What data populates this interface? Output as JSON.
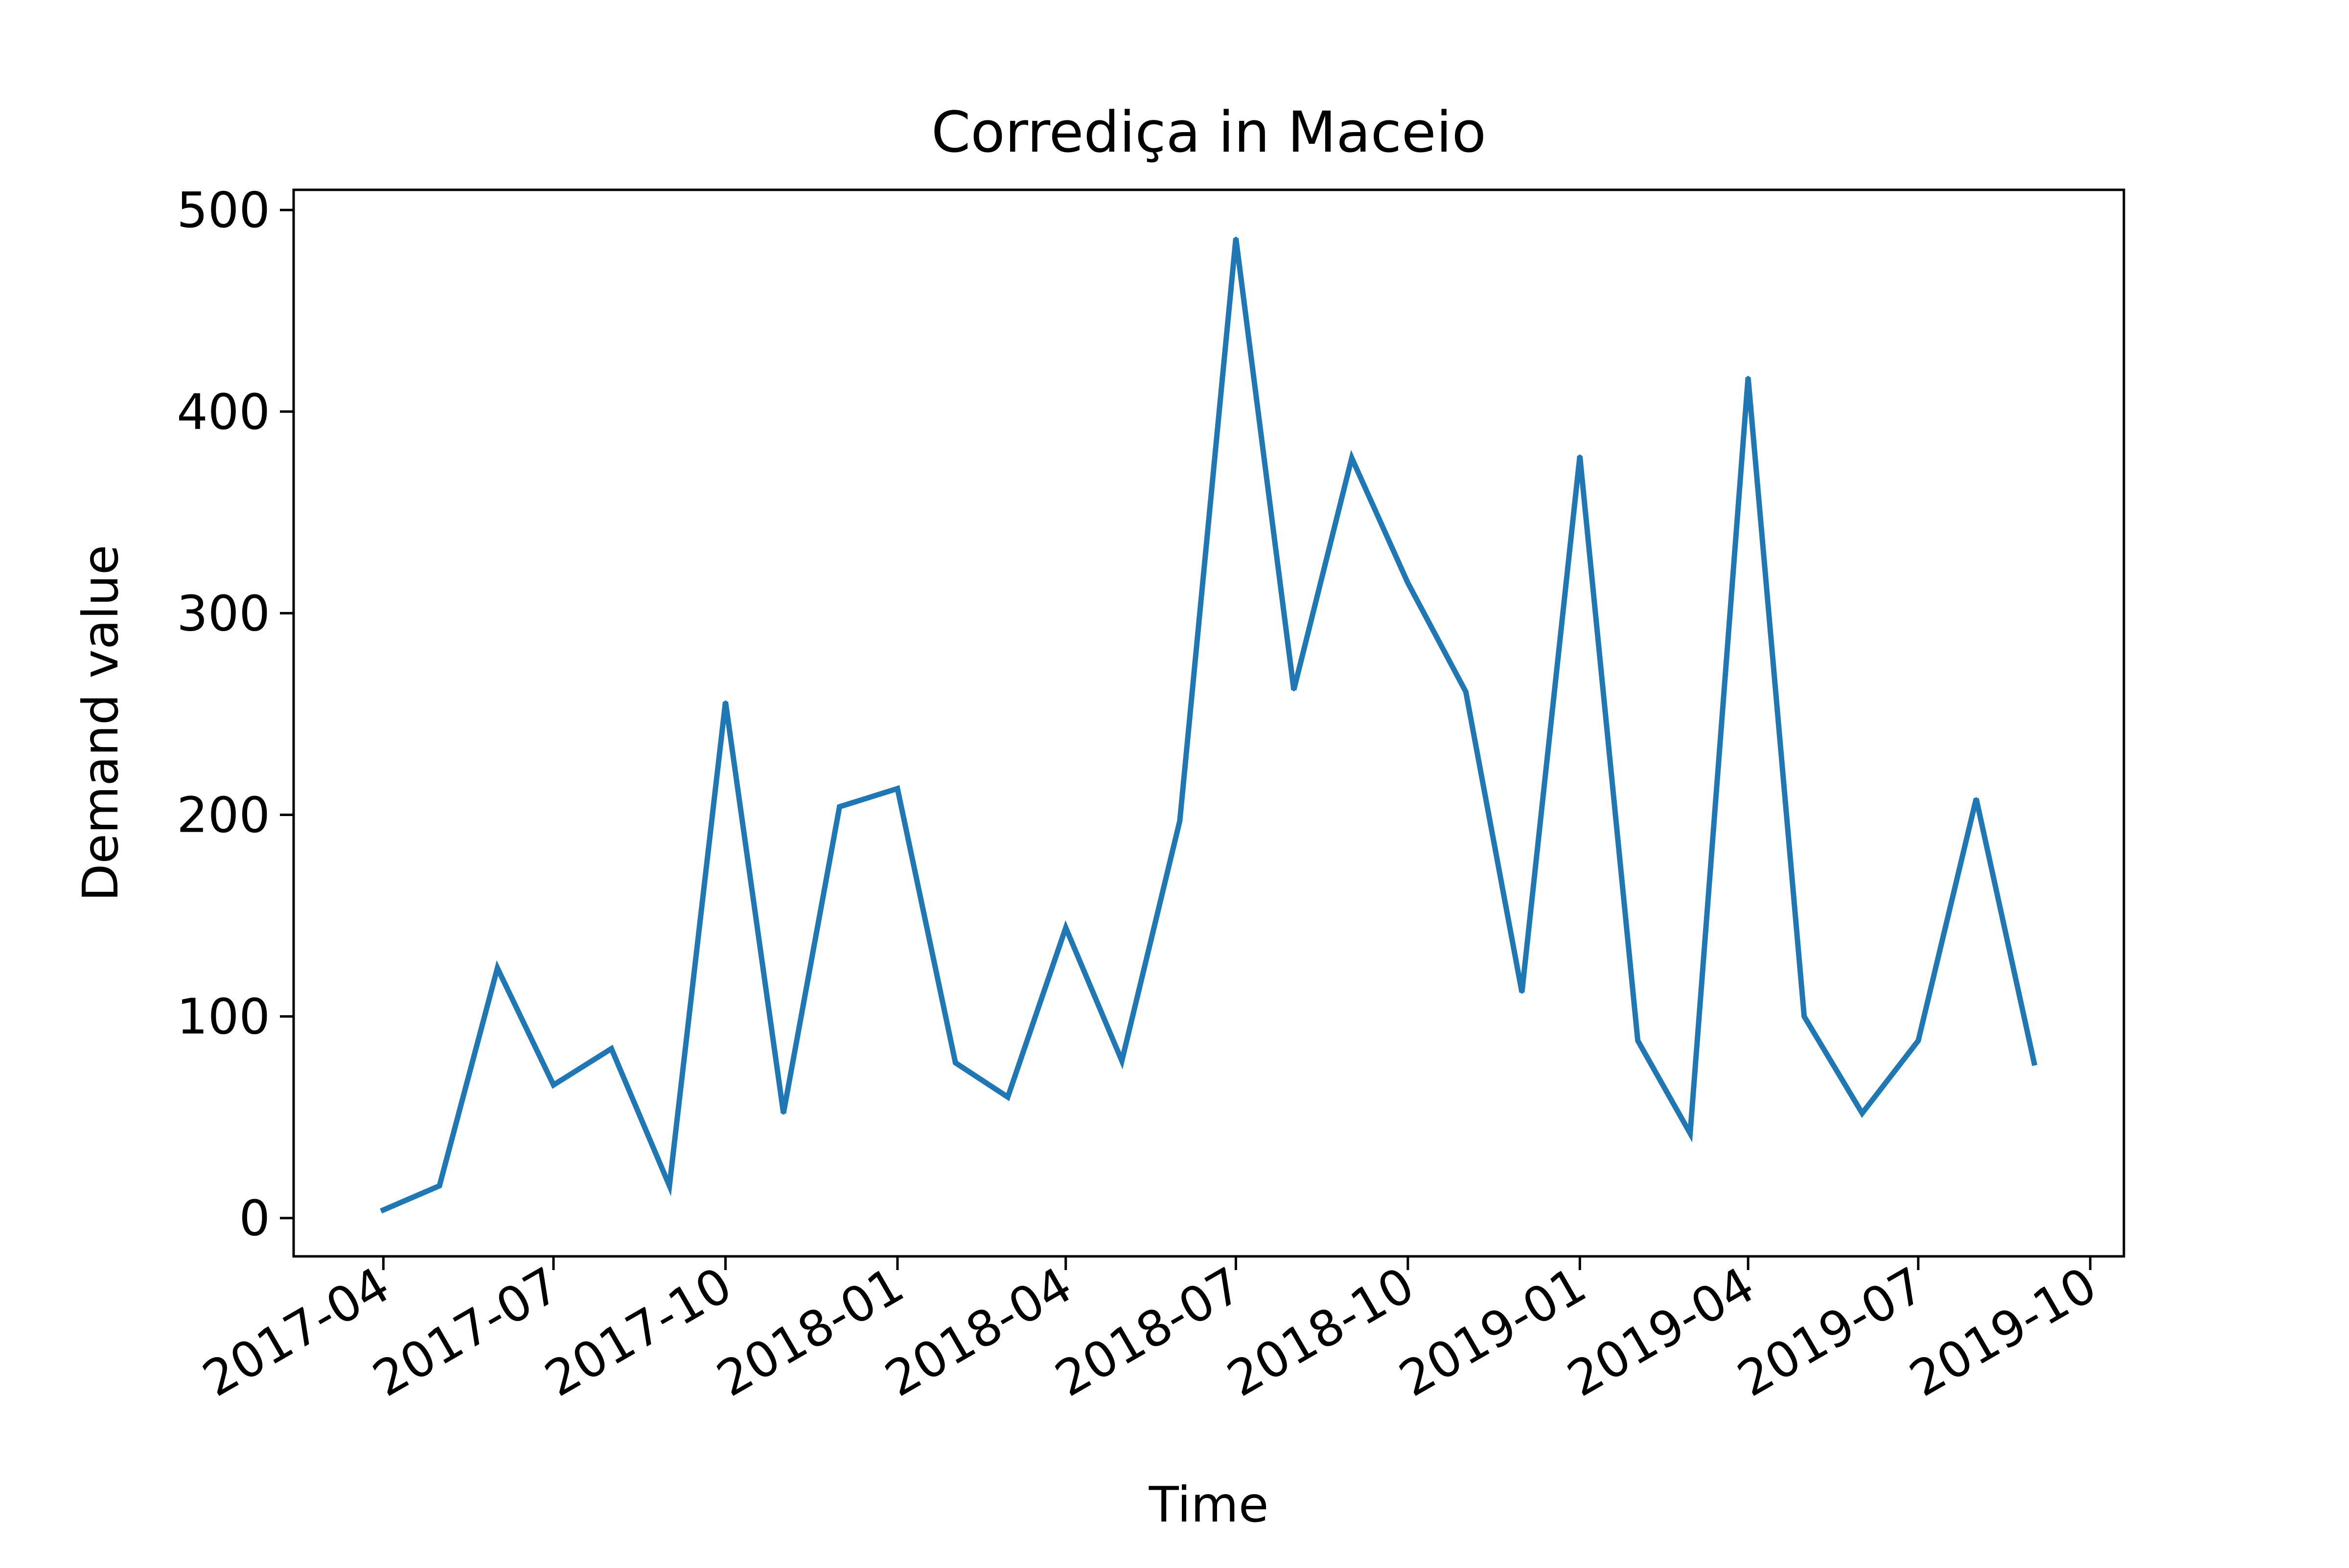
{
  "chart_data": {
    "type": "line",
    "title": "Corrediça in Maceio",
    "xlabel": "Time",
    "ylabel": "Demand value",
    "x_ticks": [
      "2017-04",
      "2017-07",
      "2017-10",
      "2018-01",
      "2018-04",
      "2018-07",
      "2018-10",
      "2019-01",
      "2019-04",
      "2019-07",
      "2019-10"
    ],
    "y_ticks": [
      0,
      100,
      200,
      300,
      400,
      500
    ],
    "xlim": [
      "2017-02-12",
      "2019-10-19"
    ],
    "ylim": [
      -19,
      510
    ],
    "grid": false,
    "series": [
      {
        "color": "#1f77b4",
        "points": [
          {
            "x": "2017-04-01",
            "y": 4
          },
          {
            "x": "2017-05-01",
            "y": 16
          },
          {
            "x": "2017-06-01",
            "y": 124
          },
          {
            "x": "2017-07-01",
            "y": 66
          },
          {
            "x": "2017-08-01",
            "y": 84
          },
          {
            "x": "2017-09-01",
            "y": 16
          },
          {
            "x": "2017-10-01",
            "y": 256
          },
          {
            "x": "2017-11-01",
            "y": 52
          },
          {
            "x": "2017-12-01",
            "y": 204
          },
          {
            "x": "2018-01-01",
            "y": 213
          },
          {
            "x": "2018-02-01",
            "y": 77
          },
          {
            "x": "2018-03-01",
            "y": 60
          },
          {
            "x": "2018-04-01",
            "y": 144
          },
          {
            "x": "2018-05-01",
            "y": 78
          },
          {
            "x": "2018-06-01",
            "y": 197
          },
          {
            "x": "2018-07-01",
            "y": 486
          },
          {
            "x": "2018-08-01",
            "y": 262
          },
          {
            "x": "2018-09-01",
            "y": 377
          },
          {
            "x": "2018-10-01",
            "y": 315
          },
          {
            "x": "2018-11-01",
            "y": 261
          },
          {
            "x": "2018-12-01",
            "y": 112
          },
          {
            "x": "2019-01-01",
            "y": 378
          },
          {
            "x": "2019-02-01",
            "y": 88
          },
          {
            "x": "2019-03-01",
            "y": 42
          },
          {
            "x": "2019-04-01",
            "y": 417
          },
          {
            "x": "2019-05-01",
            "y": 100
          },
          {
            "x": "2019-06-01",
            "y": 52
          },
          {
            "x": "2019-07-01",
            "y": 88
          },
          {
            "x": "2019-08-01",
            "y": 208
          },
          {
            "x": "2019-09-01",
            "y": 77
          }
        ]
      }
    ]
  }
}
